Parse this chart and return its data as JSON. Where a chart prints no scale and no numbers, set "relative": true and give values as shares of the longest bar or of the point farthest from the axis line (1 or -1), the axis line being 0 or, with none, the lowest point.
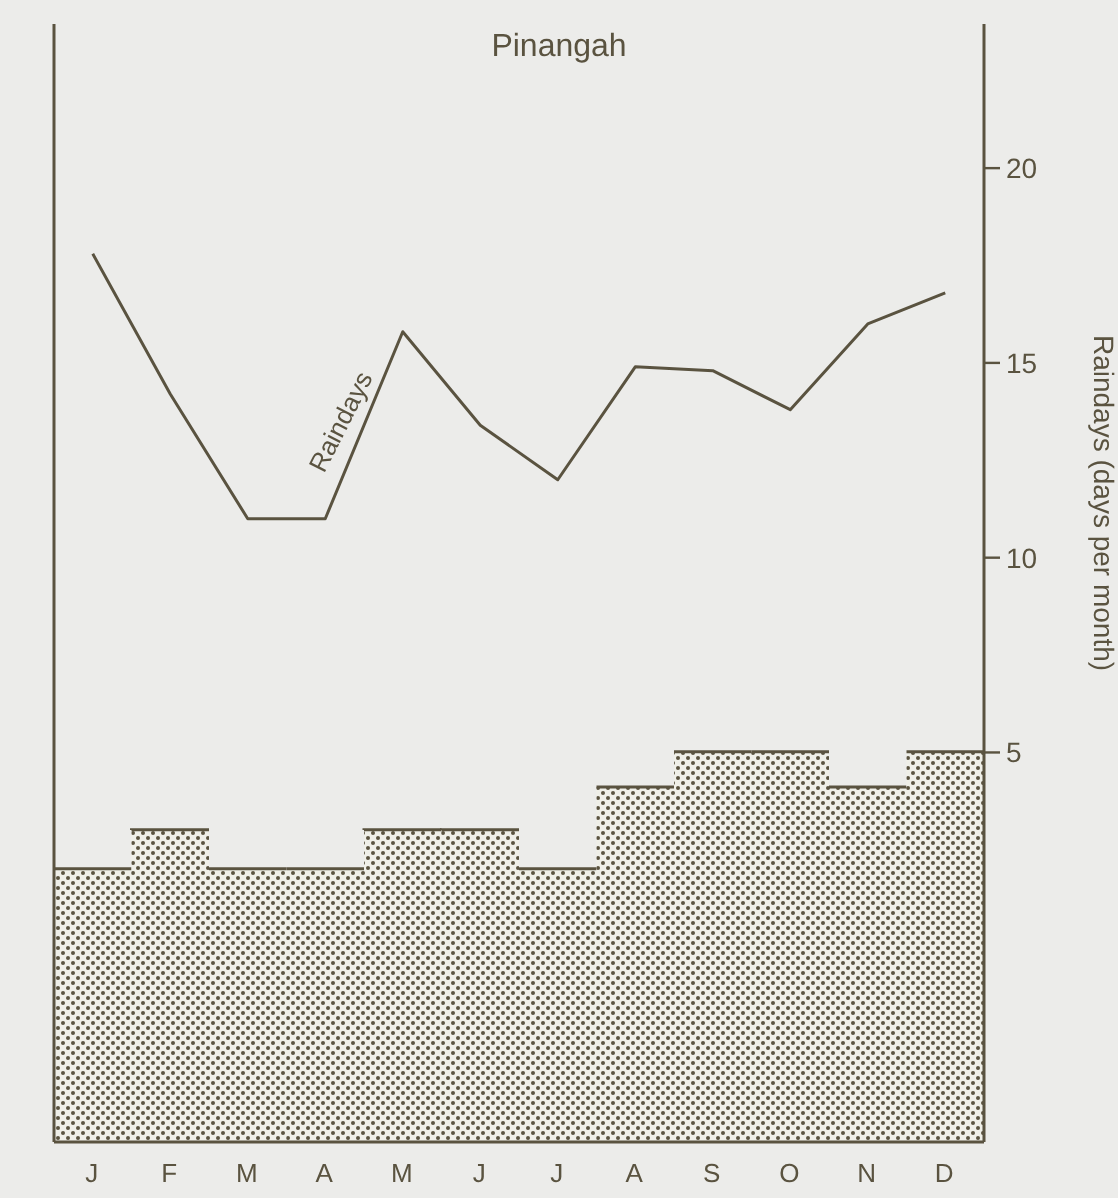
{
  "chart_data": [
    {
      "type": "bar",
      "title": "Pinangah",
      "relative": true,
      "categories": [
        "J",
        "F",
        "M",
        "A",
        "M",
        "J",
        "J",
        "A",
        "S",
        "O",
        "N",
        "D"
      ],
      "series": [
        {
          "color": "#5a5340",
          "values": [
            0.7,
            0.8,
            0.7,
            0.7,
            0.8,
            0.8,
            0.7,
            0.91,
            1,
            1,
            0.91,
            1
          ]
        }
      ]
    },
    {
      "type": "line",
      "ylabel": "Raindays (days per month)",
      "categories": [
        null,
        null,
        null,
        null,
        null,
        null,
        null,
        null,
        null,
        null,
        null,
        null
      ],
      "tick_labels": "y",
      "series": [
        {
          "color": "#5a5340",
          "values": [
            17.8,
            14.2,
            11.0,
            11.0,
            15.8,
            13.4,
            12.0,
            14.9,
            14.8,
            13.8,
            16.0,
            16.8
          ]
        }
      ],
      "ylim": [
        -5,
        23.7
      ],
      "yticks": [
        5,
        10,
        15,
        20
      ],
      "annotations": [
        "Raindays"
      ],
      "marker": "none",
      "line_style": "solid"
    }
  ]
}
